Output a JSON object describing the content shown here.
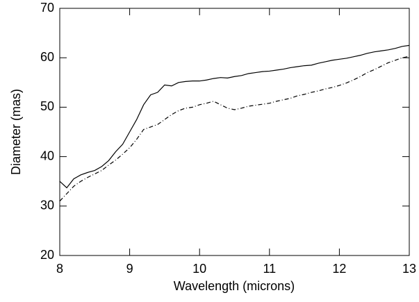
{
  "chart_data": {
    "type": "line",
    "x_label": "Wavelength (microns)",
    "y_label": "Diameter (mas)",
    "x": [
      8.0,
      8.1,
      8.2,
      8.3,
      8.4,
      8.5,
      8.6,
      8.7,
      8.8,
      8.9,
      9.0,
      9.1,
      9.2,
      9.3,
      9.4,
      9.5,
      9.6,
      9.7,
      9.8,
      9.9,
      10.0,
      10.1,
      10.2,
      10.3,
      10.4,
      10.5,
      10.6,
      10.7,
      10.8,
      10.9,
      11.0,
      11.1,
      11.2,
      11.3,
      11.4,
      11.5,
      11.6,
      11.7,
      11.8,
      11.9,
      12.0,
      12.1,
      12.2,
      12.3,
      12.4,
      12.5,
      12.6,
      12.7,
      12.8,
      12.9,
      13.0
    ],
    "series": [
      {
        "color": "#000000",
        "line_style": "solid",
        "values": [
          35,
          33.7,
          35.5,
          36.3,
          36.8,
          37.2,
          38,
          39.2,
          41,
          42.5,
          45,
          47.5,
          50.5,
          52.5,
          53,
          54.5,
          54.3,
          55,
          55.2,
          55.3,
          55.3,
          55.5,
          55.8,
          56,
          55.9,
          56.2,
          56.4,
          56.8,
          57,
          57.2,
          57.3,
          57.5,
          57.7,
          58,
          58.2,
          58.4,
          58.5,
          58.9,
          59.2,
          59.5,
          59.7,
          59.9,
          60.2,
          60.5,
          60.9,
          61.2,
          61.4,
          61.6,
          61.9,
          62.3,
          62.5
        ]
      },
      {
        "color": "#000000",
        "line_style": "dashdot",
        "values": [
          31,
          32.5,
          34,
          35,
          35.8,
          36.5,
          37.2,
          38.3,
          39.3,
          40.5,
          41.8,
          43.5,
          45.5,
          46,
          46.5,
          47.5,
          48.5,
          49.3,
          49.8,
          50,
          50.5,
          50.8,
          51.2,
          50.5,
          49.8,
          49.5,
          49.8,
          50.2,
          50.4,
          50.6,
          50.8,
          51.2,
          51.5,
          51.8,
          52.3,
          52.6,
          53,
          53.3,
          53.7,
          54,
          54.4,
          54.9,
          55.5,
          56.2,
          57,
          57.6,
          58.3,
          59,
          59.5,
          60,
          60.3
        ]
      }
    ],
    "xlim": [
      8,
      13
    ],
    "xticks": [
      8,
      9,
      10,
      11,
      12,
      13
    ],
    "ylim": [
      20,
      70
    ],
    "yticks": [
      20,
      30,
      40,
      50,
      60,
      70
    ]
  }
}
